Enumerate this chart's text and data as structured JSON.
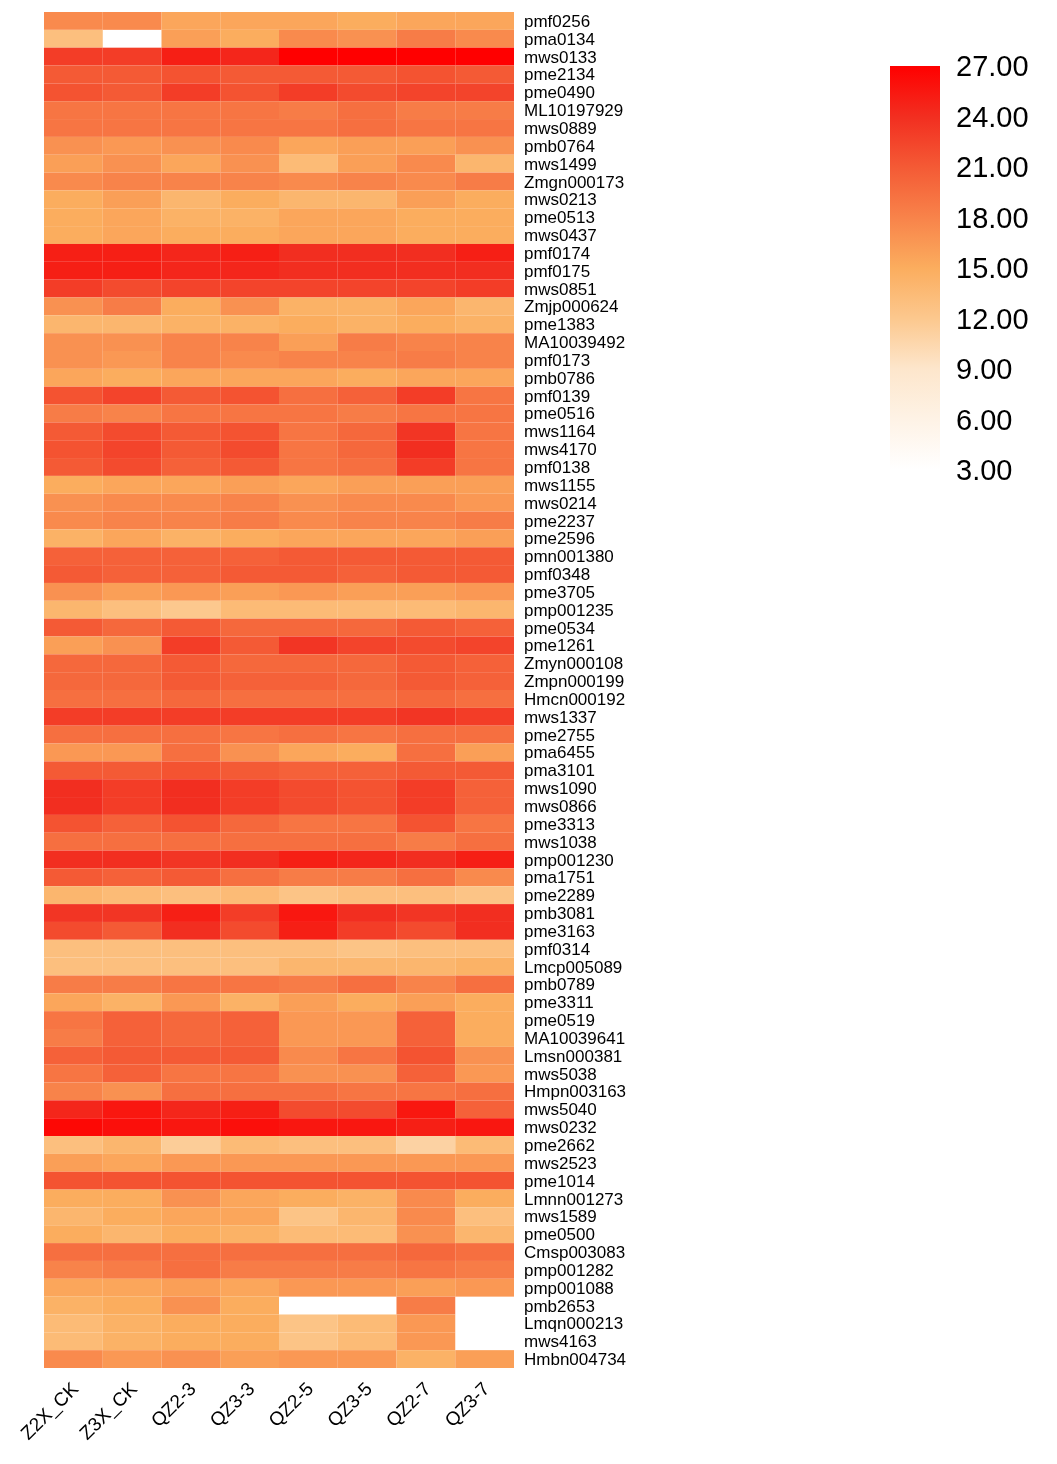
{
  "chart_data": {
    "type": "heatmap",
    "categories": [
      "Z2X_CK",
      "Z3X_CK",
      "QZ2-3",
      "QZ3-3",
      "QZ2-5",
      "QZ3-5",
      "QZ2-7",
      "QZ3-7"
    ],
    "y_categories": [
      "pmf0256",
      "pma0134",
      "mws0133",
      "pme2134",
      "pme0490",
      "ML10197929",
      "mws0889",
      "pmb0764",
      "mws1499",
      "Zmgn000173",
      "mws0213",
      "pme0513",
      "mws0437",
      "pmf0174",
      "pmf0175",
      "mws0851",
      "Zmjp000624",
      "pme1383",
      "MA10039492",
      "pmf0173",
      "pmb0786",
      "pmf0139",
      "pme0516",
      "mws1164",
      "mws4170",
      "pmf0138",
      "mws1155",
      "mws0214",
      "pme2237",
      "pme2596",
      "pmn001380",
      "pmf0348",
      "pme3705",
      "pmp001235",
      "pme0534",
      "pme1261",
      "Zmyn000108",
      "Zmpn000199",
      "Hmcn000192",
      "mws1337",
      "pme2755",
      "pma6455",
      "pma3101",
      "mws1090",
      "mws0866",
      "pme3313",
      "mws1038",
      "pmp001230",
      "pma1751",
      "pme2289",
      "pmb3081",
      "pme3163",
      "pmf0314",
      "Lmcp005089",
      "pmb0789",
      "pme3311",
      "pme0519",
      "MA10039641",
      "Lmsn000381",
      "mws5038",
      "Hmpn003163",
      "mws5040",
      "mws0232",
      "pme2662",
      "mws2523",
      "pme1014",
      "Lmnn001273",
      "mws1589",
      "pme0500",
      "Cmsp003083",
      "pmp001282",
      "pmp001088",
      "pmb2653",
      "Lmqn000213",
      "mws4163",
      "Hmbn004734"
    ],
    "cells": [
      [
        17.5,
        17.5,
        15.5,
        15.5,
        15.5,
        15,
        15.5,
        15.5
      ],
      [
        13,
        null,
        16,
        15,
        17.5,
        17,
        18.5,
        17.5
      ],
      [
        23,
        23,
        25,
        24.5,
        27,
        27,
        27,
        27
      ],
      [
        21,
        21,
        21.5,
        21,
        21,
        21,
        21.5,
        21
      ],
      [
        21.5,
        21,
        23,
        21.5,
        23,
        22,
        22.5,
        22.5
      ],
      [
        19,
        19,
        19,
        19,
        18.5,
        19.5,
        18.5,
        18.5
      ],
      [
        19,
        19,
        19,
        19,
        19,
        19.5,
        19,
        19
      ],
      [
        17,
        16.5,
        17,
        17.5,
        15.5,
        16,
        16,
        17
      ],
      [
        16,
        17,
        15.5,
        17,
        13.5,
        16,
        17.5,
        14
      ],
      [
        17.5,
        18,
        18,
        18,
        17.5,
        18,
        17.5,
        18.5
      ],
      [
        15,
        16,
        14,
        15,
        14,
        14,
        16,
        15
      ],
      [
        15,
        15.5,
        14.5,
        14.5,
        15.5,
        15.5,
        15,
        15
      ],
      [
        15,
        15.5,
        15,
        15,
        15.5,
        15.5,
        15,
        15
      ],
      [
        25,
        25,
        24.5,
        25,
        24,
        24,
        24,
        25
      ],
      [
        25,
        25,
        24.5,
        24.5,
        24,
        24,
        24,
        24
      ],
      [
        23,
        22,
        22.5,
        22.5,
        22.5,
        22.5,
        22.5,
        23
      ],
      [
        17,
        18.5,
        15,
        17,
        14.5,
        14.5,
        15.5,
        14
      ],
      [
        14,
        14,
        14.5,
        14.5,
        15,
        14.5,
        15,
        14.5
      ],
      [
        17,
        17,
        18,
        18,
        16,
        18.5,
        18,
        18
      ],
      [
        17,
        16.5,
        18,
        17.5,
        18,
        18,
        18.5,
        18
      ],
      [
        15.5,
        15,
        15.5,
        15.5,
        15.5,
        15,
        15.5,
        15.5
      ],
      [
        21.5,
        22.5,
        21,
        21.5,
        19.5,
        20.5,
        23,
        19
      ],
      [
        18.5,
        18,
        19,
        19,
        19,
        18.5,
        19,
        19
      ],
      [
        21,
        22,
        21,
        21.5,
        19,
        20,
        23.5,
        19
      ],
      [
        21.5,
        22.5,
        21,
        22,
        19,
        20,
        24,
        19
      ],
      [
        21,
        22,
        20.5,
        21,
        19,
        19.5,
        23,
        19
      ],
      [
        15,
        15.5,
        15.5,
        16,
        15.5,
        16,
        16,
        16
      ],
      [
        17,
        17.5,
        17.5,
        18,
        17,
        17.5,
        17.5,
        16.5
      ],
      [
        17.5,
        18,
        18,
        18.5,
        17.5,
        18,
        18,
        18.5
      ],
      [
        14.5,
        15.5,
        14.5,
        15,
        15.5,
        15.5,
        15.5,
        16
      ],
      [
        20.5,
        20.5,
        20.5,
        20.5,
        21,
        21,
        21,
        21
      ],
      [
        21,
        20.5,
        20.5,
        21,
        21,
        20.5,
        21,
        21
      ],
      [
        17,
        16,
        16.5,
        16,
        16.5,
        16,
        16,
        16.5
      ],
      [
        14,
        13,
        12,
        13.5,
        13.5,
        13.5,
        13.5,
        14
      ],
      [
        21,
        20,
        21,
        20,
        20,
        20,
        21,
        20.5
      ],
      [
        16,
        17,
        23,
        21,
        23.5,
        22.5,
        22,
        22.5
      ],
      [
        20,
        20,
        21,
        20,
        20,
        20,
        21,
        20.5
      ],
      [
        20,
        20,
        21,
        20.5,
        20.5,
        20,
        21,
        20.5
      ],
      [
        19.5,
        19.5,
        20,
        19.5,
        19.5,
        19.5,
        20,
        19.5
      ],
      [
        23,
        23,
        23,
        23,
        23,
        23,
        23.5,
        23
      ],
      [
        19.5,
        19.5,
        19.5,
        19,
        19.5,
        19,
        19.5,
        19.5
      ],
      [
        16.5,
        16.5,
        19.5,
        17,
        15.5,
        15,
        19.5,
        16
      ],
      [
        21,
        21,
        21.5,
        21,
        20.5,
        20.5,
        21,
        21
      ],
      [
        24,
        23,
        24,
        23,
        22,
        21.5,
        23,
        20.5
      ],
      [
        24,
        23,
        24,
        23,
        22,
        21.5,
        23,
        20.5
      ],
      [
        21.5,
        20.5,
        21.5,
        20,
        19,
        19,
        21.5,
        19
      ],
      [
        19.5,
        19.5,
        19.5,
        19.5,
        19.5,
        19.5,
        18.5,
        19.5
      ],
      [
        24,
        24,
        23.5,
        24,
        25,
        24.5,
        24,
        25
      ],
      [
        21,
        20.5,
        21,
        19.5,
        18.5,
        18.5,
        19.5,
        17.5
      ],
      [
        14,
        13.5,
        13,
        13.5,
        12.5,
        13,
        13,
        12.5
      ],
      [
        23.5,
        23.5,
        25,
        23,
        25.5,
        24,
        23.5,
        24
      ],
      [
        22,
        21,
        24,
        22,
        25,
        23,
        22,
        24
      ],
      [
        13,
        13,
        13,
        13,
        13,
        12.5,
        13,
        13
      ],
      [
        13,
        13,
        13,
        13,
        14,
        14,
        14,
        14.5
      ],
      [
        18.5,
        18.5,
        19,
        19,
        18.5,
        19.5,
        18,
        19.5
      ],
      [
        15.5,
        14.5,
        16.5,
        14.5,
        16,
        15,
        16,
        15
      ],
      [
        19,
        20.5,
        20,
        20.5,
        16.5,
        16.5,
        20.5,
        15
      ],
      [
        18.5,
        20.5,
        20,
        20.5,
        16.5,
        16.5,
        20.5,
        15
      ],
      [
        20.5,
        21,
        21,
        21,
        17.5,
        19,
        21.5,
        17
      ],
      [
        19,
        20.5,
        19,
        19,
        17,
        17,
        20.5,
        16.5
      ],
      [
        18,
        17,
        19.5,
        19.5,
        19.5,
        19,
        19,
        19.5
      ],
      [
        24.5,
        25.5,
        24.5,
        25,
        22,
        22,
        25.5,
        20.5
      ],
      [
        26.5,
        26,
        25.5,
        26,
        25.5,
        25.5,
        25,
        25.5
      ],
      [
        13,
        14,
        11.5,
        13.5,
        13,
        13,
        11,
        13.5
      ],
      [
        16,
        15.5,
        16.5,
        16.5,
        16.5,
        16.5,
        16.5,
        16.5
      ],
      [
        21.5,
        21.5,
        21.5,
        21.5,
        21.5,
        21.5,
        21.5,
        21.5
      ],
      [
        15,
        15,
        17,
        15.5,
        15,
        14.5,
        17.5,
        15
      ],
      [
        14,
        15,
        15.5,
        15.5,
        12.5,
        14,
        17.5,
        13
      ],
      [
        15,
        14,
        15,
        14.5,
        13.5,
        13.5,
        17,
        14
      ],
      [
        19.5,
        19.5,
        19.5,
        19.5,
        19.5,
        19.5,
        20,
        19.5
      ],
      [
        18,
        18.5,
        19.5,
        18.5,
        18.5,
        18.5,
        19,
        18.5
      ],
      [
        15.5,
        15.5,
        16,
        15.5,
        16.5,
        16.5,
        16,
        16.5
      ],
      [
        14.5,
        15,
        17,
        15,
        null,
        null,
        18.5,
        null
      ],
      [
        13.5,
        14.5,
        15,
        15,
        12.5,
        13.5,
        16.5,
        null
      ],
      [
        13.5,
        14.5,
        15,
        15,
        12.5,
        13.5,
        16.5,
        null
      ],
      [
        17.5,
        16.5,
        17,
        16,
        16.5,
        16.5,
        14.5,
        16
      ]
    ],
    "clim": [
      3,
      27
    ],
    "cticks": [
      {
        "value": 3,
        "label": "3.00"
      },
      {
        "value": 6,
        "label": "6.00"
      },
      {
        "value": 9,
        "label": "9.00"
      },
      {
        "value": 12,
        "label": "12.00"
      },
      {
        "value": 15,
        "label": "15.00"
      },
      {
        "value": 18,
        "label": "18.00"
      },
      {
        "value": 21,
        "label": "21.00"
      },
      {
        "value": 24,
        "label": "24.00"
      },
      {
        "value": 27,
        "label": "27.00"
      }
    ]
  }
}
